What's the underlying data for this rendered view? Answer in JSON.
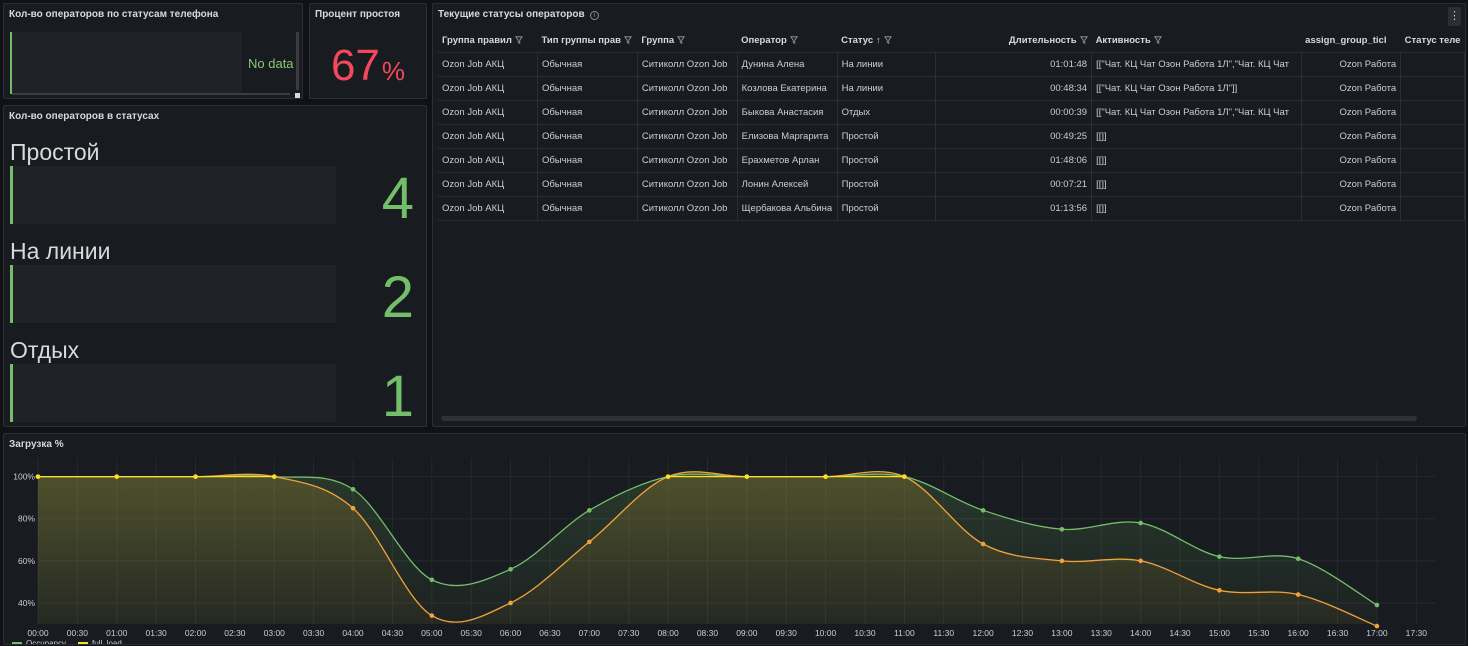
{
  "panels": {
    "phone": {
      "title": "Кол-во операторов по статусам телефона",
      "no_data": "No data"
    },
    "idle": {
      "title": "Процент простоя",
      "value": "67",
      "unit": "%",
      "color": "#f2495c"
    },
    "counts": {
      "title": "Кол-во операторов в статусах",
      "rows": [
        {
          "label": "Простой",
          "value": "4"
        },
        {
          "label": "На линии",
          "value": "2"
        },
        {
          "label": "Отдых",
          "value": "1"
        }
      ]
    },
    "table": {
      "title": "Текущие статусы операторов",
      "columns": [
        "Группа правил",
        "Тип группы прав",
        "Группа",
        "Оператор",
        "Статус",
        "Длительность",
        "Активность",
        "assign_group_ticl",
        "Статус теле"
      ],
      "rows": [
        [
          "Ozon Job АКЦ",
          "Обычная",
          "Ситиколл Ozon Job",
          "Дунина Алена",
          "На линии",
          "01:01:48",
          "[[\"Чат. КЦ Чат Озон Работа 1Л\",\"Чат. КЦ Чат",
          "Ozon Работа",
          ""
        ],
        [
          "Ozon Job АКЦ",
          "Обычная",
          "Ситиколл Ozon Job",
          "Козлова Екатерина",
          "На линии",
          "00:48:34",
          "[[\"Чат. КЦ Чат Озон Работа 1Л\"]]",
          "Ozon Работа",
          ""
        ],
        [
          "Ozon Job АКЦ",
          "Обычная",
          "Ситиколл Ozon Job",
          "Быкова Анастасия",
          "Отдых",
          "00:00:39",
          "[[\"Чат. КЦ Чат Озон Работа 1Л\",\"Чат. КЦ Чат",
          "Ozon Работа",
          ""
        ],
        [
          "Ozon Job АКЦ",
          "Обычная",
          "Ситиколл Ozon Job",
          "Елизова Маргарита",
          "Простой",
          "00:49:25",
          "[[]]",
          "Ozon Работа",
          ""
        ],
        [
          "Ozon Job АКЦ",
          "Обычная",
          "Ситиколл Ozon Job",
          "Ерахметов Арлан",
          "Простой",
          "01:48:06",
          "[[]]",
          "Ozon Работа",
          ""
        ],
        [
          "Ozon Job АКЦ",
          "Обычная",
          "Ситиколл Ozon Job",
          "Лонин Алексей",
          "Простой",
          "00:07:21",
          "[[]]",
          "Ozon Работа",
          ""
        ],
        [
          "Ozon Job АКЦ",
          "Обычная",
          "Ситиколл Ozon Job",
          "Щербакова Альбина",
          "Простой",
          "01:13:56",
          "[[]]",
          "Ozon Работа",
          ""
        ]
      ]
    },
    "load": {
      "title": "Загрузка %"
    }
  },
  "chart_data": {
    "type": "line",
    "title": "Загрузка %",
    "x": [
      "00:00",
      "01:00",
      "02:00",
      "03:00",
      "04:00",
      "05:00",
      "06:00",
      "07:00",
      "08:00",
      "09:00",
      "10:00",
      "11:00",
      "12:00",
      "13:00",
      "14:00",
      "15:00",
      "16:00",
      "17:00"
    ],
    "x_ticks": [
      "00:00",
      "00:30",
      "01:00",
      "01:30",
      "02:00",
      "02:30",
      "03:00",
      "03:30",
      "04:00",
      "04:30",
      "05:00",
      "05:30",
      "06:00",
      "06:30",
      "07:00",
      "07:30",
      "08:00",
      "08:30",
      "09:00",
      "09:30",
      "10:00",
      "10:30",
      "11:00",
      "11:30",
      "12:00",
      "12:30",
      "13:00",
      "13:30",
      "14:00",
      "14:30",
      "15:00",
      "15:30",
      "16:00",
      "16:30",
      "17:00",
      "17:30"
    ],
    "y_ticks": [
      "100%",
      "80%",
      "60%",
      "40%"
    ],
    "ylim": [
      30,
      106
    ],
    "xlim_hours": [
      0,
      17.75
    ],
    "grid": true,
    "legend_placement": "bottom-left",
    "series": [
      {
        "name": "Occupancy",
        "color": "#73bf69",
        "values": [
          100,
          100,
          100,
          100,
          94,
          51,
          56,
          84,
          100,
          100,
          100,
          100,
          84,
          75,
          78,
          62,
          61,
          39
        ]
      },
      {
        "name": "full_load",
        "color": "#fade2a",
        "line_color_after_first": "#f2a23a",
        "values": [
          100,
          100,
          100,
          100,
          85,
          34,
          40,
          69,
          100,
          100,
          100,
          100,
          68,
          60,
          60,
          46,
          44,
          29
        ]
      }
    ]
  }
}
